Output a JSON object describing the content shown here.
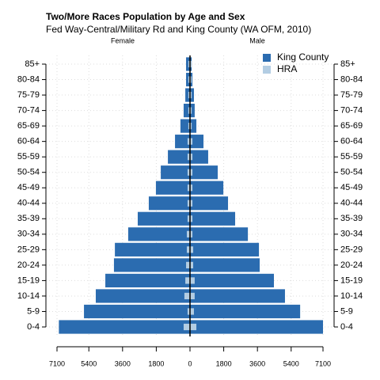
{
  "chart_data": {
    "type": "pyramid",
    "title": "Two/More Races Population by Age and Sex",
    "subtitle": "Fed Way-Central/Military Rd and King County (WA OFM, 2010)",
    "left_label": "Female",
    "right_label": "Male",
    "categories": [
      "0-4",
      "5-9",
      "10-14",
      "15-19",
      "20-24",
      "25-29",
      "30-34",
      "35-39",
      "40-44",
      "45-49",
      "50-54",
      "55-59",
      "60-64",
      "65-69",
      "70-74",
      "75-79",
      "80-84",
      "85+"
    ],
    "series": [
      {
        "name": "King County",
        "color": "#2b6cb0",
        "female": [
          7000,
          5660,
          5030,
          4520,
          4060,
          4010,
          3300,
          2790,
          2200,
          1820,
          1560,
          1180,
          800,
          510,
          340,
          250,
          210,
          210
        ],
        "male": [
          7100,
          5880,
          5070,
          4480,
          3720,
          3680,
          3090,
          2410,
          2030,
          1780,
          1480,
          970,
          720,
          340,
          250,
          210,
          130,
          90
        ]
      },
      {
        "name": "HRA",
        "color": "#b3cde3",
        "female": [
          340,
          130,
          300,
          250,
          210,
          170,
          170,
          130,
          130,
          130,
          130,
          130,
          130,
          90,
          90,
          90,
          90,
          90
        ],
        "male": [
          340,
          210,
          250,
          250,
          170,
          170,
          130,
          130,
          130,
          130,
          130,
          130,
          130,
          90,
          90,
          90,
          90,
          90
        ]
      }
    ],
    "xlim": [
      -7100,
      7100
    ],
    "xticks": [
      {
        "value": -7100,
        "label": "7100"
      },
      {
        "value": -5400,
        "label": "5400"
      },
      {
        "value": -3600,
        "label": "3600"
      },
      {
        "value": -1800,
        "label": "1800"
      },
      0,
      1800,
      3600,
      5400,
      7100
    ],
    "grid": true,
    "legend": "top-right"
  }
}
